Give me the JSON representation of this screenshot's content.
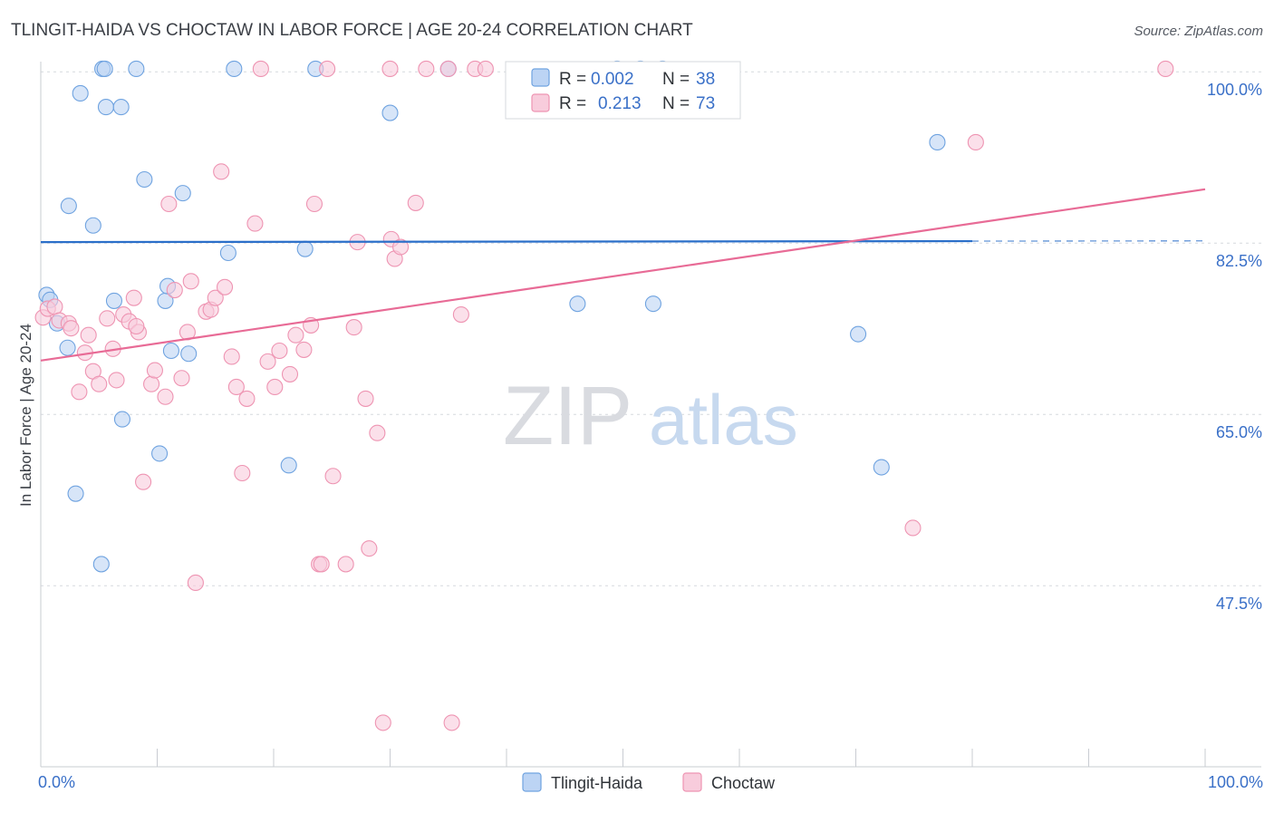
{
  "chart_data": {
    "type": "scatter",
    "title": "TLINGIT-HAIDA VS CHOCTAW IN LABOR FORCE | AGE 20-24 CORRELATION CHART",
    "source": "Source: ZipAtlas.com",
    "ylabel": "In Labor Force | Age 20-24",
    "xlim": [
      0,
      100
    ],
    "ylim": [
      29.0,
      101.5
    ],
    "x_tick_labels": {
      "left": "0.0%",
      "right": "100.0%"
    },
    "y_ticks": [
      {
        "value": 100.0,
        "label": "100.0%"
      },
      {
        "value": 82.5,
        "label": "82.5%"
      },
      {
        "value": 65.0,
        "label": "65.0%"
      },
      {
        "value": 47.5,
        "label": "47.5%"
      }
    ],
    "grid": true,
    "legend_position": "top-center",
    "watermark": {
      "zip": "ZIP",
      "atlas": "atlas"
    },
    "series": [
      {
        "name": "Tlingit-Haida",
        "color": "#6fa3e0",
        "fill": "#bcd4f4",
        "line_color": "#2b6fc9",
        "r_label": "R = ",
        "r_value": "0.002",
        "n_label": "N = ",
        "n_value": "38",
        "trend": {
          "x0": 0,
          "y0": 82.6,
          "x1": 80,
          "y1": 82.7,
          "dash_to": 100
        },
        "points": [
          [
            0.5,
            77.2
          ],
          [
            0.8,
            76.7
          ],
          [
            1.4,
            74.3
          ],
          [
            2.3,
            71.8
          ],
          [
            2.4,
            86.3
          ],
          [
            3.0,
            56.9
          ],
          [
            3.4,
            97.8
          ],
          [
            4.5,
            84.3
          ],
          [
            5.3,
            100.3
          ],
          [
            5.5,
            100.3
          ],
          [
            5.2,
            49.7
          ],
          [
            5.6,
            96.4
          ],
          [
            6.3,
            76.6
          ],
          [
            6.9,
            96.4
          ],
          [
            7.0,
            64.5
          ],
          [
            8.2,
            100.3
          ],
          [
            8.9,
            89.0
          ],
          [
            10.2,
            61.0
          ],
          [
            10.7,
            76.6
          ],
          [
            10.9,
            78.1
          ],
          [
            11.2,
            71.5
          ],
          [
            12.2,
            87.6
          ],
          [
            12.7,
            71.2
          ],
          [
            16.1,
            81.5
          ],
          [
            16.6,
            100.3
          ],
          [
            21.3,
            59.8
          ],
          [
            22.7,
            81.9
          ],
          [
            23.6,
            100.3
          ],
          [
            30.0,
            95.8
          ],
          [
            35.0,
            100.3
          ],
          [
            46.1,
            76.3
          ],
          [
            49.5,
            100.3
          ],
          [
            53.4,
            100.3
          ],
          [
            51.5,
            100.3
          ],
          [
            52.6,
            76.3
          ],
          [
            70.2,
            73.2
          ],
          [
            72.2,
            59.6
          ],
          [
            77.0,
            92.8
          ]
        ]
      },
      {
        "name": "Choctaw",
        "color": "#ee94b2",
        "fill": "#f8ccdc",
        "line_color": "#e86b96",
        "r_label": "R = ",
        "r_value": "0.213",
        "n_label": "N = ",
        "n_value": "73",
        "trend": {
          "x0": 0,
          "y0": 70.5,
          "x1": 100,
          "y1": 88.0
        },
        "points": [
          [
            0.2,
            74.9
          ],
          [
            0.6,
            75.8
          ],
          [
            1.2,
            76.0
          ],
          [
            1.6,
            74.6
          ],
          [
            2.4,
            74.3
          ],
          [
            2.6,
            73.8
          ],
          [
            3.3,
            67.3
          ],
          [
            3.8,
            71.3
          ],
          [
            4.1,
            73.1
          ],
          [
            4.5,
            69.4
          ],
          [
            5.0,
            68.1
          ],
          [
            5.7,
            74.8
          ],
          [
            6.2,
            71.7
          ],
          [
            6.5,
            68.5
          ],
          [
            7.1,
            75.2
          ],
          [
            7.6,
            74.5
          ],
          [
            8.0,
            76.9
          ],
          [
            8.4,
            73.4
          ],
          [
            8.8,
            58.1
          ],
          [
            9.5,
            68.1
          ],
          [
            9.8,
            69.5
          ],
          [
            10.7,
            66.8
          ],
          [
            11.0,
            86.5
          ],
          [
            11.5,
            77.7
          ],
          [
            12.1,
            68.7
          ],
          [
            12.6,
            73.4
          ],
          [
            12.9,
            78.6
          ],
          [
            13.3,
            47.8
          ],
          [
            14.2,
            75.5
          ],
          [
            14.6,
            75.7
          ],
          [
            15.0,
            76.9
          ],
          [
            15.5,
            89.8
          ],
          [
            15.8,
            78.0
          ],
          [
            16.4,
            70.9
          ],
          [
            16.8,
            67.8
          ],
          [
            17.3,
            59.0
          ],
          [
            17.7,
            66.6
          ],
          [
            18.4,
            84.5
          ],
          [
            18.9,
            100.3
          ],
          [
            19.5,
            70.4
          ],
          [
            20.1,
            67.8
          ],
          [
            20.5,
            71.5
          ],
          [
            21.4,
            69.1
          ],
          [
            21.9,
            73.1
          ],
          [
            22.6,
            71.6
          ],
          [
            23.2,
            74.1
          ],
          [
            23.5,
            86.5
          ],
          [
            23.9,
            49.7
          ],
          [
            24.6,
            100.3
          ],
          [
            25.1,
            58.7
          ],
          [
            26.2,
            49.7
          ],
          [
            26.9,
            73.9
          ],
          [
            27.2,
            82.6
          ],
          [
            27.9,
            66.6
          ],
          [
            28.2,
            51.3
          ],
          [
            28.9,
            63.1
          ],
          [
            29.4,
            33.5
          ],
          [
            30.1,
            82.9
          ],
          [
            30.4,
            80.9
          ],
          [
            30.0,
            100.3
          ],
          [
            30.9,
            82.1
          ],
          [
            32.2,
            86.6
          ],
          [
            33.1,
            100.3
          ],
          [
            35.0,
            100.3
          ],
          [
            35.3,
            33.5
          ],
          [
            36.1,
            75.2
          ],
          [
            37.3,
            100.3
          ],
          [
            38.2,
            100.3
          ],
          [
            24.1,
            49.7
          ],
          [
            74.9,
            53.4
          ],
          [
            80.3,
            92.8
          ],
          [
            96.6,
            100.3
          ],
          [
            8.2,
            74.0
          ]
        ]
      }
    ]
  }
}
